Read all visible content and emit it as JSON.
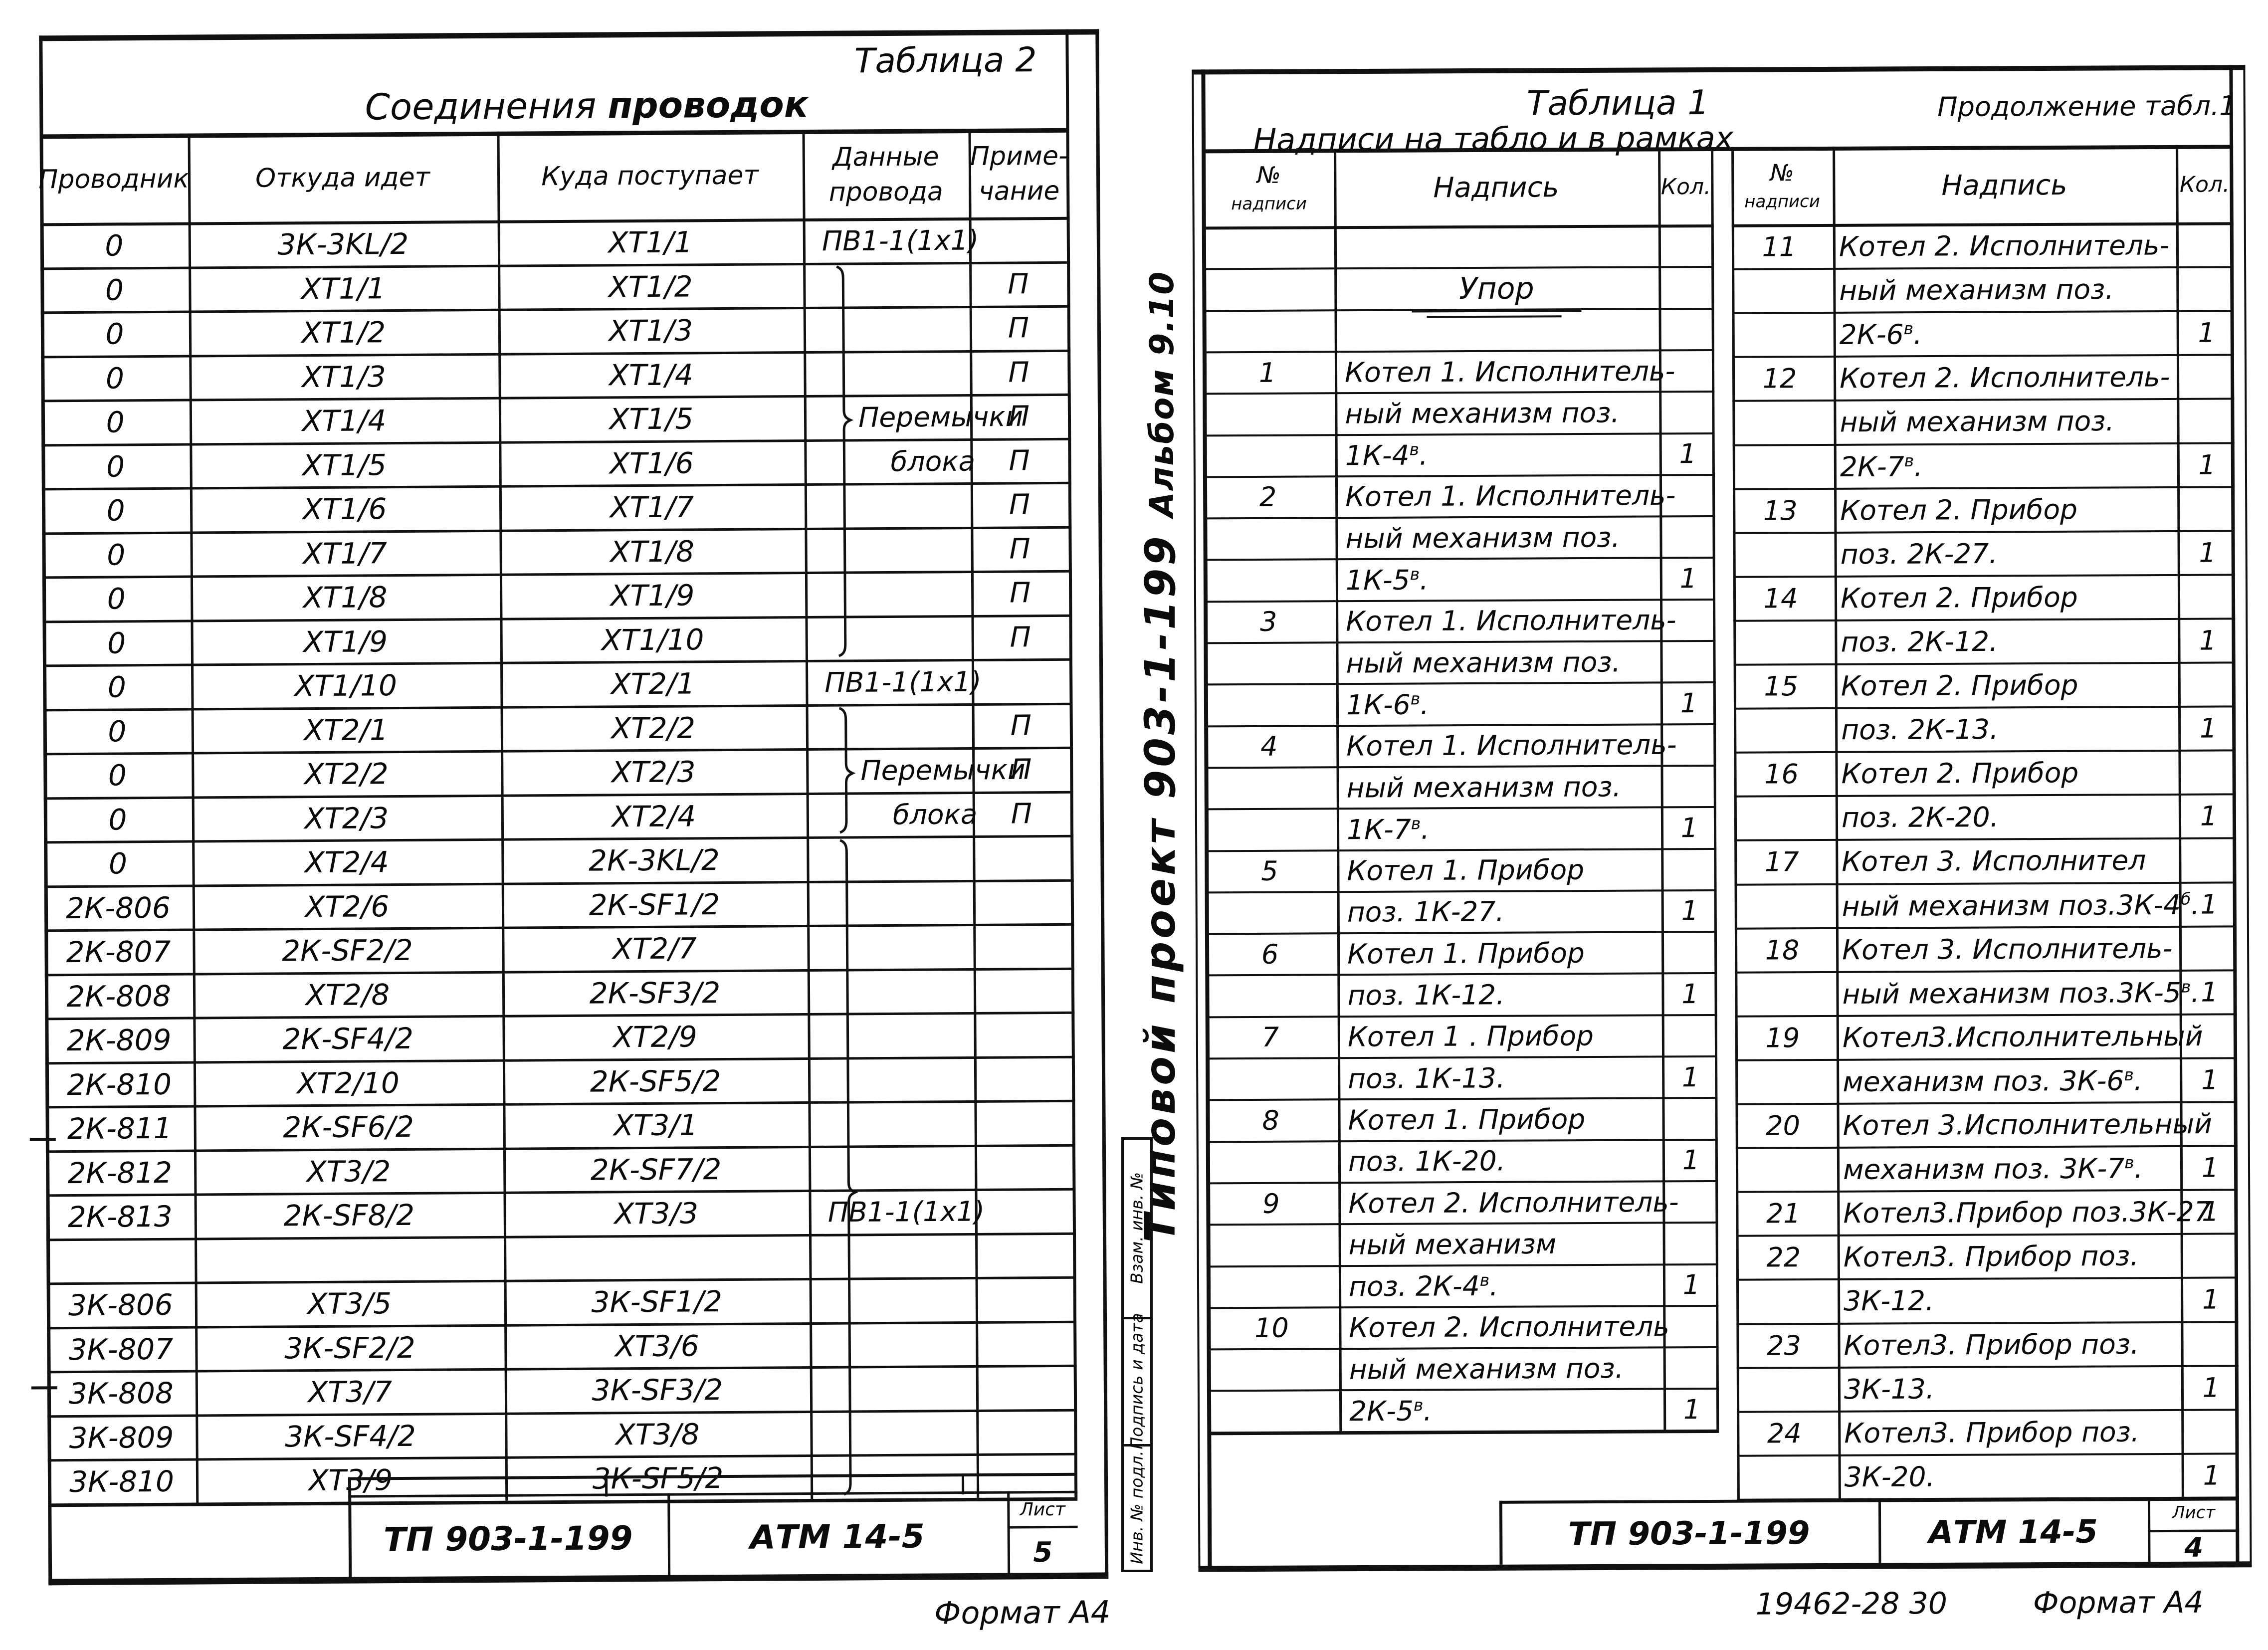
{
  "left_page": {
    "caption": "Таблица 2",
    "title_normal": "Соединения",
    "title_bold": "проводок",
    "col_headers": [
      [
        "Проводник"
      ],
      [
        "Откуда идет"
      ],
      [
        "Куда поступает"
      ],
      [
        "Данные",
        "провода"
      ],
      [
        "Приме-",
        "чание"
      ]
    ],
    "rows": [
      [
        "0",
        "3К-3KL/2",
        "ХТ1/1",
        "ПВ1-1(1х1)",
        ""
      ],
      [
        "0",
        "ХТ1/1",
        "ХТ1/2",
        "",
        "П"
      ],
      [
        "0",
        "ХТ1/2",
        "ХТ1/3",
        "",
        "П"
      ],
      [
        "0",
        "ХТ1/3",
        "ХТ1/4",
        "",
        "П"
      ],
      [
        "0",
        "ХТ1/4",
        "ХТ1/5",
        "Перемычки",
        "П"
      ],
      [
        "0",
        "ХТ1/5",
        "ХТ1/6",
        "блока",
        "П"
      ],
      [
        "0",
        "ХТ1/6",
        "ХТ1/7",
        "",
        "П"
      ],
      [
        "0",
        "ХТ1/7",
        "ХТ1/8",
        "",
        "П"
      ],
      [
        "0",
        "ХТ1/8",
        "ХТ1/9",
        "",
        "П"
      ],
      [
        "0",
        "ХТ1/9",
        "ХТ1/10",
        "",
        "П"
      ],
      [
        "0",
        "ХТ1/10",
        "ХТ2/1",
        "ПВ1-1(1х1)",
        ""
      ],
      [
        "0",
        "ХТ2/1",
        "ХТ2/2",
        "",
        "П"
      ],
      [
        "0",
        "ХТ2/2",
        "ХТ2/3",
        "Перемычки",
        "П"
      ],
      [
        "0",
        "ХТ2/3",
        "ХТ2/4",
        "блока",
        "П"
      ],
      [
        "0",
        "ХТ2/4",
        "2К-3KL/2",
        "",
        ""
      ],
      [
        "2К-806",
        "ХТ2/6",
        "2К-SF1/2",
        "",
        ""
      ],
      [
        "2К-807",
        "2К-SF2/2",
        "ХТ2/7",
        "",
        ""
      ],
      [
        "2К-808",
        "ХТ2/8",
        "2К-SF3/2",
        "",
        ""
      ],
      [
        "2К-809",
        "2К-SF4/2",
        "ХТ2/9",
        "",
        ""
      ],
      [
        "2К-810",
        "ХТ2/10",
        "2К-SF5/2",
        "",
        ""
      ],
      [
        "2К-811",
        "2К-SF6/2",
        "ХТ3/1",
        "",
        ""
      ],
      [
        "2К-812",
        "ХТ3/2",
        "2К-SF7/2",
        "",
        ""
      ],
      [
        "2К-813",
        "2К-SF8/2",
        "ХТ3/3",
        "ПВ1-1(1х1)",
        ""
      ],
      [
        "",
        "",
        "",
        "",
        ""
      ],
      [
        "3К-806",
        "ХТ3/5",
        "3К-SF1/2",
        "",
        ""
      ],
      [
        "3К-807",
        "3К-SF2/2",
        "ХТ3/6",
        "",
        ""
      ],
      [
        "3К-808",
        "ХТ3/7",
        "3К-SF3/2",
        "",
        ""
      ],
      [
        "3К-809",
        "3К-SF4/2",
        "ХТ3/8",
        "",
        ""
      ],
      [
        "3К-810",
        "ХТ3/9",
        "3К-SF5/2",
        "",
        ""
      ]
    ],
    "titleblock": {
      "project": "ТП 903-1-199",
      "org": "АТМ 14-5",
      "sheet_label": "Лист",
      "sheet_value": "5"
    },
    "format_note": "Формат А4"
  },
  "spine": {
    "album": "Альбом 9.10",
    "project": "Типовой проект 903-1-199",
    "stamp_boxes": [
      "Взам. инв. №",
      "Подпись и дата",
      "Инв. № подл."
    ]
  },
  "right_page": {
    "caption": "Таблица 1",
    "title": "Надписи на табло и в рамках",
    "continuation": "Продолжение табл.1",
    "col_num": [
      "№",
      "надписи"
    ],
    "col_text": "Надпись",
    "col_qty": "Кол.",
    "rows_left": [
      {
        "t": ""
      },
      {
        "t": "Упор",
        "group": true
      },
      {
        "t": ""
      },
      {
        "n": "1",
        "t": "Котел 1. Исполнитель-"
      },
      {
        "t": "ный механизм поз."
      },
      {
        "t": "1К-4^в.",
        "q": "1"
      },
      {
        "n": "2",
        "t": "Котел 1. Исполнитель-"
      },
      {
        "t": "ный механизм поз."
      },
      {
        "t": "1К-5^в.",
        "q": "1"
      },
      {
        "n": "3",
        "t": "Котел 1. Исполнитель-"
      },
      {
        "t": "ный механизм поз."
      },
      {
        "t": "1К-6^в.",
        "q": "1"
      },
      {
        "n": "4",
        "t": "Котел 1. Исполнитель-"
      },
      {
        "t": "ный механизм поз."
      },
      {
        "t": "1К-7^в.",
        "q": "1"
      },
      {
        "n": "5",
        "t": "Котел 1.  Прибор"
      },
      {
        "t": "поз. 1К-27.",
        "q": "1"
      },
      {
        "n": "6",
        "t": "Котел 1.  Прибор"
      },
      {
        "t": "поз. 1К-12.",
        "q": "1"
      },
      {
        "n": "7",
        "t": "Котел 1 .  Прибор"
      },
      {
        "t": "поз. 1К-13.",
        "q": "1"
      },
      {
        "n": "8",
        "t": "Котел 1.  Прибор"
      },
      {
        "t": "поз. 1К-20.",
        "q": "1"
      },
      {
        "n": "9",
        "t": "Котел 2. Исполнитель-"
      },
      {
        "t": "ный механизм"
      },
      {
        "t": "поз. 2К-4^в.",
        "q": "1"
      },
      {
        "n": "10",
        "t": "Котел 2. Исполнитель"
      },
      {
        "t": "ный механизм поз."
      },
      {
        "t": "2К-5^в.",
        "q": "1"
      }
    ],
    "rows_right": [
      {
        "n": "11",
        "t": "Котел 2. Исполнитель-"
      },
      {
        "t": "ный механизм поз."
      },
      {
        "t": "2К-6^в.",
        "q": "1"
      },
      {
        "n": "12",
        "t": "Котел 2. Исполнитель-"
      },
      {
        "t": "ный механизм поз."
      },
      {
        "t": "2К-7^в.",
        "q": "1"
      },
      {
        "n": "13",
        "t": "Котел 2.   Прибор"
      },
      {
        "t": "поз. 2К-27.",
        "q": "1"
      },
      {
        "n": "14",
        "t": "Котел 2.  Прибор"
      },
      {
        "t": "поз. 2К-12.",
        "q": "1"
      },
      {
        "n": "15",
        "t": "Котел 2.   Прибор"
      },
      {
        "t": "поз. 2К-13.",
        "q": "1"
      },
      {
        "n": "16",
        "t": "Котел 2.  Прибор"
      },
      {
        "t": "поз. 2К-20.",
        "q": "1"
      },
      {
        "n": "17",
        "t": "Котел 3.  Исполнител"
      },
      {
        "t": "ный  механизм поз.3К-4^б.",
        "q": "1"
      },
      {
        "n": "18",
        "t": "Котел 3. Исполнитель-"
      },
      {
        "t": "ный  механизм поз.3К-5^в.",
        "q": "1"
      },
      {
        "n": "19",
        "t": "Котел3.Исполнительный"
      },
      {
        "t": "механизм  поз. 3К-6^в.",
        "q": "1"
      },
      {
        "n": "20",
        "t": "Котел 3.Исполнительный"
      },
      {
        "t": "механизм  поз. 3К-7^в.",
        "q": "1"
      },
      {
        "n": "21",
        "t": "Котел3.Прибор поз.3К-27",
        "q": "1"
      },
      {
        "n": "22",
        "t": "Котел3. Прибор поз."
      },
      {
        "t": "3К-12.",
        "q": "1"
      },
      {
        "n": "23",
        "t": "Котел3. Прибор поз."
      },
      {
        "t": "3К-13.",
        "q": "1"
      },
      {
        "n": "24",
        "t": "Котел3.  Прибор поз."
      },
      {
        "t": "3К-20.",
        "q": "1"
      }
    ],
    "titleblock": {
      "project": "ТП 903-1-199",
      "org": "АТМ 14-5",
      "sheet_label": "Лист",
      "sheet_value": "4"
    },
    "doc_number": "19462-28  30",
    "format_note": "Формат А4"
  }
}
